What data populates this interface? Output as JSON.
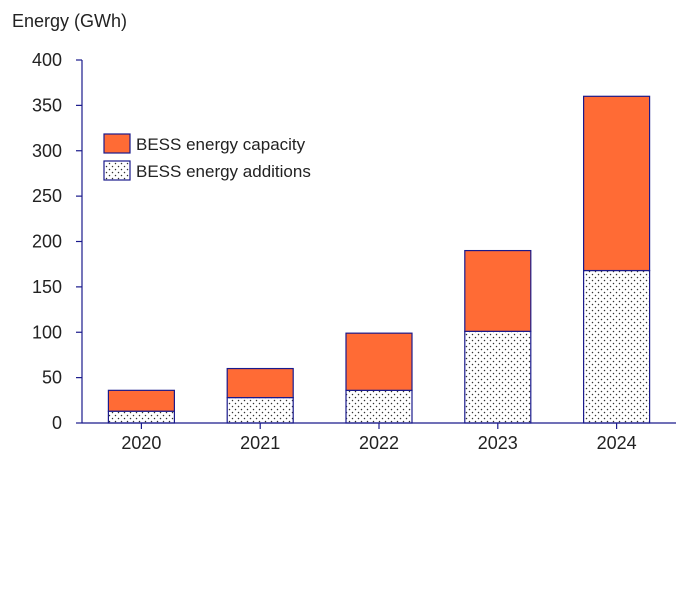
{
  "chart_data": {
    "type": "bar",
    "stacked": true,
    "title": "",
    "ylabel": "Energy  (GWh)",
    "xlabel": "",
    "categories": [
      "2020",
      "2021",
      "2022",
      "2023",
      "2024"
    ],
    "ylim": [
      0,
      400
    ],
    "yticks": [
      0,
      50,
      100,
      150,
      200,
      250,
      300,
      350,
      400
    ],
    "series": [
      {
        "name": "BESS energy additions",
        "values": [
          13,
          28,
          36,
          101,
          168
        ],
        "fill": "dotted",
        "color": "#ffffff",
        "stroke": "#1a1a8c"
      },
      {
        "name": "BESS energy capacity",
        "values": [
          23,
          32,
          63,
          89,
          192
        ],
        "fill": "solid",
        "color": "#ff6b35",
        "stroke": "#1a1a8c"
      }
    ],
    "totals": [
      36,
      60,
      99,
      190,
      360
    ],
    "legend": {
      "position": "top-left",
      "entries": [
        "BESS energy capacity",
        "BESS energy additions"
      ]
    },
    "grid": false,
    "axis_color": "#1a1a8c"
  }
}
